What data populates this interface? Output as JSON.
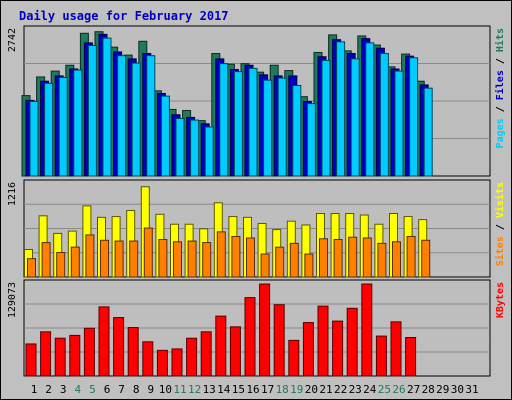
{
  "title": "Daily usage for February 2017",
  "colors": {
    "background": "#c0c0c0",
    "plot_bg": "#bebebe",
    "border": "#000000",
    "title": "#0000c0",
    "hits": "#1f7a5c",
    "files": "#0000c0",
    "pages": "#00ccff",
    "visits": "#ffff00",
    "sites": "#ff8000",
    "kbytes": "#ff0000",
    "weekend_label": "#1f7a5c",
    "weekday_label": "#000000"
  },
  "chart_data": {
    "type": "bar",
    "days": [
      "1",
      "2",
      "3",
      "4",
      "5",
      "6",
      "7",
      "8",
      "9",
      "10",
      "11",
      "12",
      "13",
      "14",
      "15",
      "16",
      "17",
      "18",
      "19",
      "20",
      "21",
      "22",
      "23",
      "24",
      "25",
      "26",
      "27",
      "28",
      "29",
      "30",
      "31"
    ],
    "weekend_days": [
      "4",
      "5",
      "11",
      "12",
      "18",
      "19",
      "25",
      "26"
    ],
    "panels": [
      {
        "id": "usage",
        "ymax_label": "2742",
        "ymax": 2742,
        "axis_labels": [
          "Pages",
          "Files",
          "Hits"
        ],
        "series": [
          {
            "name": "Hits",
            "color_key": "hits",
            "values": [
              1510,
              1860,
              1970,
              2080,
              2680,
              2710,
              2420,
              2270,
              2530,
              1600,
              1250,
              1230,
              1040,
              2300,
              2100,
              2110,
              1950,
              2080,
              1980,
              1490,
              2320,
              2650,
              2350,
              2630,
              2460,
              2050,
              2290,
              1780
            ]
          },
          {
            "name": "Files",
            "color_key": "files",
            "values": [
              1420,
              1780,
              1880,
              2010,
              2500,
              2660,
              2330,
              2200,
              2300,
              1550,
              1150,
              1100,
              980,
              2200,
              2000,
              2080,
              1900,
              1880,
              1880,
              1400,
              2240,
              2560,
              2300,
              2580,
              2400,
              2010,
              2250,
              1710
            ]
          },
          {
            "name": "Pages",
            "color_key": "pages",
            "values": [
              1400,
              1740,
              1850,
              1990,
              2450,
              2590,
              2260,
              2120,
              2260,
              1500,
              1080,
              1050,
              920,
              2110,
              1960,
              2020,
              1800,
              1840,
              1700,
              1360,
              2170,
              2520,
              2200,
              2500,
              2300,
              1970,
              2220,
              1650
            ]
          }
        ]
      },
      {
        "id": "visits",
        "ymax_label": "1216",
        "ymax": 1216,
        "axis_labels": [
          "Sites",
          "Visits"
        ],
        "series": [
          {
            "name": "Visits",
            "color_key": "visits",
            "values": [
              360,
              800,
              570,
              600,
              930,
              780,
              790,
              870,
              1180,
              820,
              690,
              690,
              630,
              970,
              790,
              780,
              700,
              620,
              730,
              680,
              830,
              830,
              830,
              810,
              690,
              830,
              790,
              750
            ]
          },
          {
            "name": "Sites",
            "color_key": "sites",
            "values": [
              240,
              450,
              320,
              390,
              550,
              480,
              470,
              470,
              640,
              490,
              460,
              470,
              450,
              590,
              530,
              510,
              300,
              390,
              440,
              300,
              500,
              490,
              520,
              510,
              440,
              460,
              530,
              480
            ]
          }
        ]
      },
      {
        "id": "kbytes",
        "ymax_label": "129073",
        "ymax": 129073,
        "axis_labels": [
          "KBytes"
        ],
        "series": [
          {
            "name": "KBytes",
            "color_key": "kbytes",
            "values": [
              45000,
              62000,
              53000,
              57000,
              67000,
              97000,
              82000,
              68000,
              48000,
              36000,
              38000,
              53000,
              62000,
              84000,
              69000,
              110000,
              129073,
              100000,
              50000,
              75000,
              98000,
              77000,
              95000,
              129073,
              56000,
              76000,
              54000,
              0
            ]
          }
        ]
      }
    ]
  }
}
